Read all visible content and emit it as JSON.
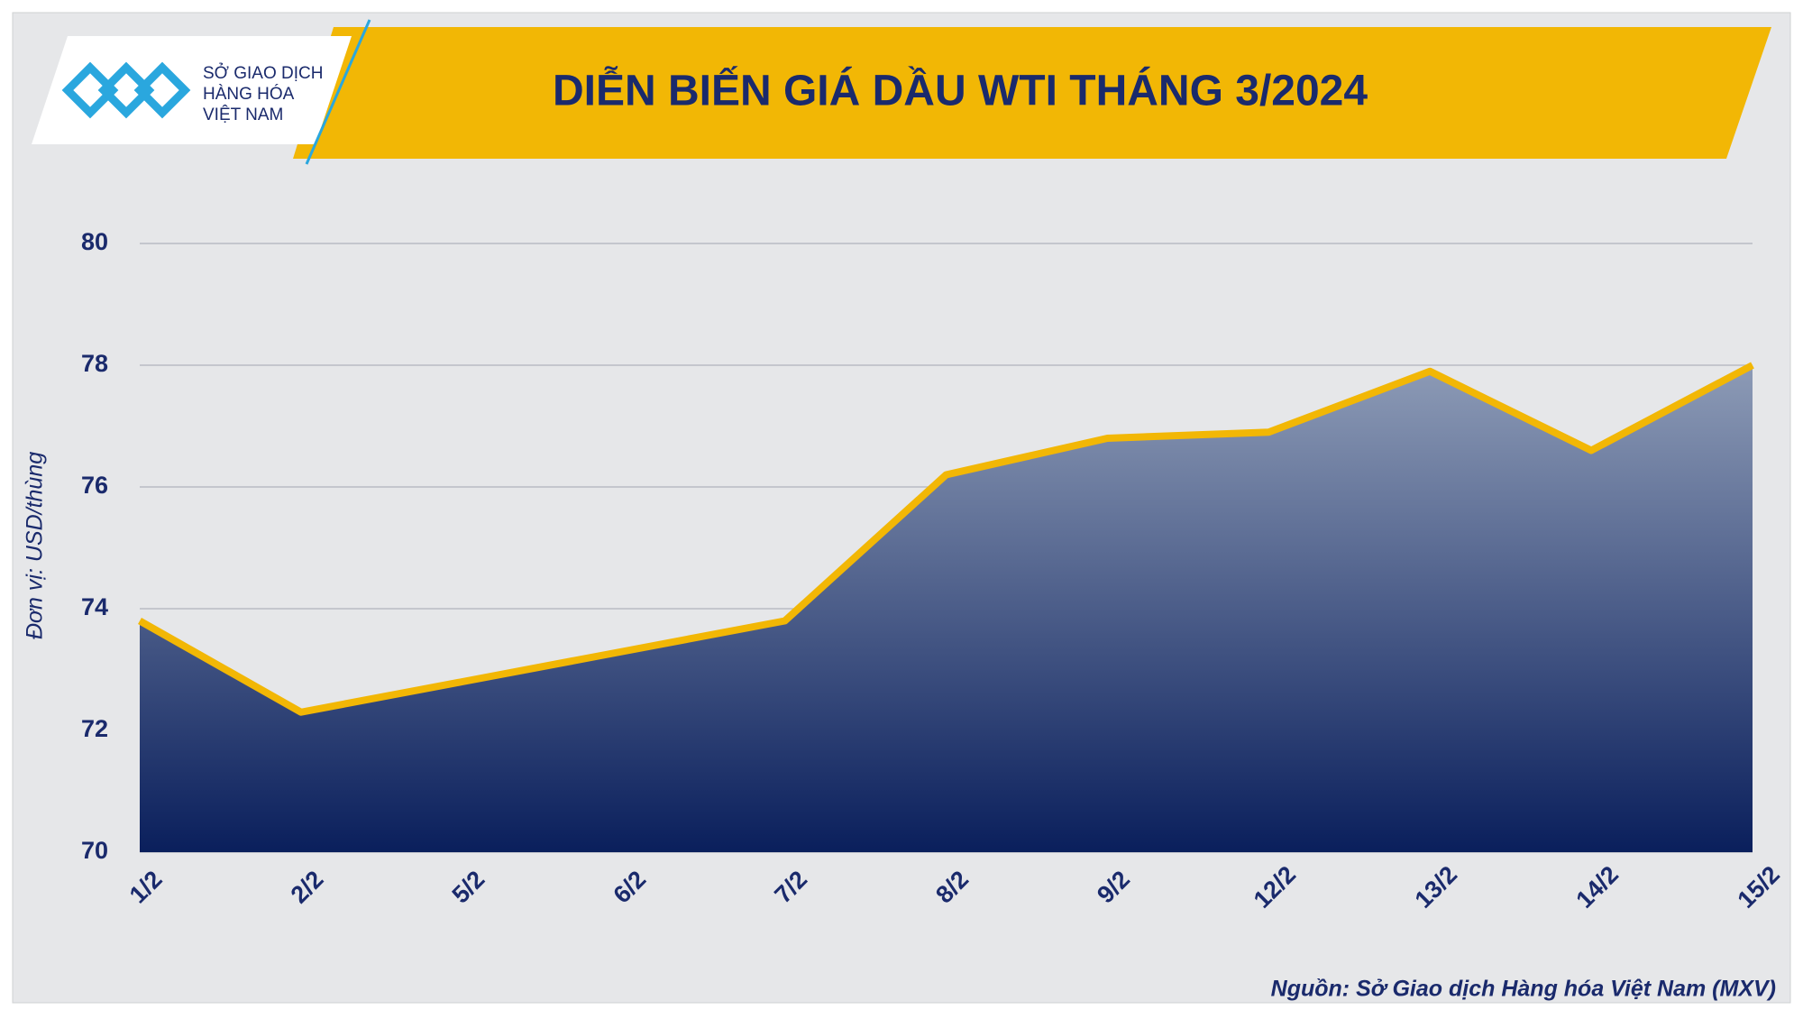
{
  "logo": {
    "lines": [
      "SỞ GIAO DỊCH",
      "HÀNG HÓA",
      "VIỆT NAM"
    ]
  },
  "chart_data": {
    "type": "area",
    "title": "DIỄN BIẾN GIÁ DẦU WTI THÁNG 3/2024",
    "y_label": "Đơn vị: USD/thùng",
    "source": "Nguồn: Sở Giao dịch Hàng hóa Việt Nam (MXV)",
    "categories": [
      "1/2",
      "2/2",
      "5/2",
      "6/2",
      "7/2",
      "8/2",
      "9/2",
      "12/2",
      "13/2",
      "14/2",
      "15/2"
    ],
    "values": [
      73.8,
      72.3,
      72.8,
      73.3,
      73.8,
      76.2,
      76.8,
      76.9,
      77.9,
      76.6,
      78.0
    ],
    "color": "#f2b705",
    "fill_top": "#8d9bb6",
    "fill_bottom": "#0a1f5c",
    "ylim": [
      70,
      80
    ],
    "yticks": [
      70,
      72,
      74,
      76,
      78,
      80
    ],
    "grid": true
  }
}
